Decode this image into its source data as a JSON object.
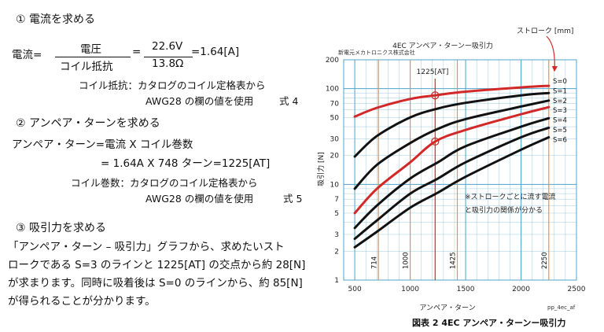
{
  "left": {
    "step1_heading": "① 電流を求める",
    "current_label": "電流=",
    "num1": "電圧",
    "den1": "コイル抵抗",
    "eq1": "=",
    "num2": "22.6V",
    "den2": "13.8Ω",
    "result1": "=1.64[A]",
    "note1_line1": "コイル抵抗：カタログのコイル定格表から",
    "note1_line2": "AWG28 の欄の値を使用",
    "eq_no1": "式 4",
    "step2_heading": "② アンペア・ターンを求める",
    "at_line1": "アンペア・ターン=電流 X コイル巻数",
    "at_line2": "= 1.64A X 748 ターン=1225[AT]",
    "note2_line1": "コイル巻数：カタログのコイル定格表から",
    "note2_line2": "AWG28 の欄の値を使用",
    "eq_no2": "式 5",
    "step3_heading": "③ 吸引力を求める",
    "para_line1": "「アンペア・ターン – 吸引力」グラフから、求めたいスト",
    "para_line2": "ロークである S=3 のラインと 1225[AT] の交点から約 28[N]",
    "para_line3": "が求まります。同時に吸着後は S=0 のラインから、約 85[N]",
    "para_line4": "が得られることが分かります。"
  },
  "chart_data": {
    "type": "line",
    "title": "4EC アンペア・ターンー吸引力",
    "maker": "新電元メカトロニクス株式会社",
    "xlabel": "アンペア・ターン",
    "ylabel": "吸引力 [N]",
    "stroke_label": "ストローク [mm]",
    "xlim": [
      400,
      2500
    ],
    "ylim": [
      1,
      200
    ],
    "y_scale": "log",
    "x_ticks": [
      "500",
      "1000",
      "1500",
      "2000",
      "2500"
    ],
    "y_ticks": [
      {
        "v": 1,
        "label": "1"
      },
      {
        "v": 2,
        "label": "2"
      },
      {
        "v": 3,
        "label": "3"
      },
      {
        "v": 5,
        "label": "5"
      },
      {
        "v": 7,
        "label": "7"
      },
      {
        "v": 10,
        "label": "10"
      },
      {
        "v": 20,
        "label": "20"
      },
      {
        "v": 30,
        "label": "30"
      },
      {
        "v": 50,
        "label": "50"
      },
      {
        "v": 70,
        "label": "70"
      },
      {
        "v": 100,
        "label": "100"
      },
      {
        "v": 200,
        "label": "200"
      }
    ],
    "vlines": [
      {
        "x": 714,
        "label": "714"
      },
      {
        "x": 1000,
        "label": "1000"
      },
      {
        "x": 1425,
        "label": "1425"
      },
      {
        "x": 2250,
        "label": "2250"
      }
    ],
    "marker_line": {
      "x": 1225,
      "label": "1225[AT]"
    },
    "series": [
      {
        "name": "S=0",
        "color": "#d22828",
        "x": [
          500,
          700,
          1000,
          1225,
          1500,
          2000,
          2250
        ],
        "y": [
          51,
          63,
          78,
          85,
          93,
          103,
          107
        ]
      },
      {
        "name": "S=1",
        "color": "#111111",
        "x": [
          500,
          700,
          1000,
          1250,
          1500,
          2000,
          2250
        ],
        "y": [
          19.5,
          32,
          50,
          62,
          71,
          85,
          90
        ]
      },
      {
        "name": "S=2",
        "color": "#111111",
        "x": [
          500,
          700,
          1000,
          1250,
          1500,
          2000,
          2250
        ],
        "y": [
          9,
          16,
          27,
          38,
          48,
          65,
          75
        ]
      },
      {
        "name": "S=3",
        "color": "#d22828",
        "x": [
          500,
          700,
          1000,
          1225,
          1500,
          2000,
          2250
        ],
        "y": [
          5,
          9,
          17,
          28,
          37,
          54,
          64
        ]
      },
      {
        "name": "S=4",
        "color": "#111111",
        "x": [
          500,
          700,
          1000,
          1250,
          1500,
          2000,
          2250
        ],
        "y": [
          3.5,
          6,
          11.5,
          17,
          25,
          40,
          49
        ]
      },
      {
        "name": "S=5",
        "color": "#111111",
        "x": [
          500,
          700,
          1000,
          1250,
          1500,
          2000,
          2250
        ],
        "y": [
          2.7,
          4.2,
          8,
          11.5,
          17,
          31,
          39
        ]
      },
      {
        "name": "S=6",
        "color": "#111111",
        "x": [
          500,
          700,
          1000,
          1250,
          1500,
          2000,
          2250
        ],
        "y": [
          2.2,
          3.2,
          5.7,
          8.2,
          12,
          23,
          31
        ]
      }
    ],
    "points": [
      {
        "x": 1225,
        "y": 85
      },
      {
        "x": 1225,
        "y": 28
      }
    ],
    "annotation_line1": "※ストロークごとに流す電流",
    "annotation_line2": "と吸引力の関係が分かる",
    "file_id": "pp_4ec_af",
    "caption": "図表 2  4EC アンペア・ターンー吸引力"
  }
}
